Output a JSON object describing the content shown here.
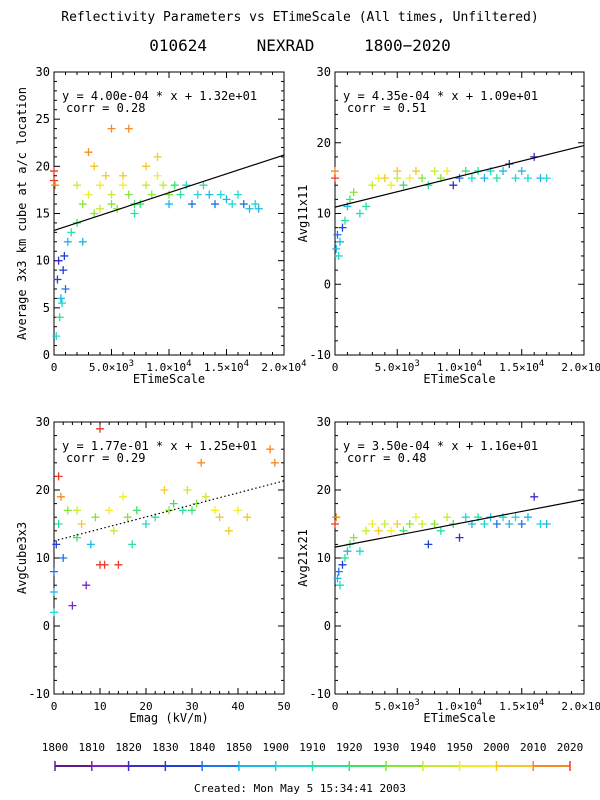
{
  "header": {
    "title": "Reflectivity Parameters vs ETimeScale (All times, Unfiltered)",
    "date": "010624",
    "source": "NEXRAD",
    "time_range": "1800−2020"
  },
  "colorbar": {
    "labels": [
      "1800",
      "1810",
      "1820",
      "1830",
      "1840",
      "1850",
      "1900",
      "1910",
      "1920",
      "1930",
      "1940",
      "1950",
      "2000",
      "2010",
      "2020"
    ],
    "colors": [
      "#5a1d88",
      "#7a24c4",
      "#3a2cc8",
      "#1f3fd8",
      "#1e74e8",
      "#1db8e6",
      "#21d8d0",
      "#2ae0a0",
      "#3ee06a",
      "#86e636",
      "#c8ec2c",
      "#f0ee2a",
      "#f5c82a",
      "#f58a28",
      "#ee3a22"
    ]
  },
  "footer": {
    "created": "Created: Mon May  5 15:34:41 2003"
  },
  "chart_data": [
    {
      "type": "scatter",
      "id": "p1",
      "xlabel": "ETimeScale",
      "ylabel": "Average 3x3 km cube at a/c location",
      "xlim": [
        0,
        20000
      ],
      "ylim": [
        0,
        30
      ],
      "xticks": [
        0,
        5000,
        10000,
        15000,
        20000
      ],
      "yticks": [
        0,
        5,
        10,
        15,
        20,
        25,
        30
      ],
      "annotation_eq": "y = 4.00e-04 * x  + 1.32e+01",
      "annotation_corr": "corr = 0.28",
      "fit": {
        "slope": 0.0004,
        "intercept": 13.2,
        "style": "solid"
      },
      "points": [
        [
          0,
          18.5,
          14
        ],
        [
          0,
          19.5,
          14
        ],
        [
          100,
          18,
          13
        ],
        [
          200,
          2,
          6
        ],
        [
          300,
          8,
          3
        ],
        [
          400,
          10,
          2
        ],
        [
          500,
          4,
          7
        ],
        [
          600,
          6,
          5
        ],
        [
          700,
          5.5,
          6
        ],
        [
          800,
          9,
          3
        ],
        [
          900,
          10.5,
          3
        ],
        [
          1000,
          7,
          4
        ],
        [
          1200,
          12,
          5
        ],
        [
          1500,
          13,
          7
        ],
        [
          2000,
          14,
          8
        ],
        [
          2000,
          18,
          10
        ],
        [
          2500,
          16,
          9
        ],
        [
          2500,
          12,
          5
        ],
        [
          3000,
          17,
          11
        ],
        [
          3000,
          21.5,
          13
        ],
        [
          3500,
          15,
          9
        ],
        [
          3500,
          20,
          12
        ],
        [
          4000,
          15.5,
          10
        ],
        [
          4000,
          18,
          11
        ],
        [
          4500,
          19,
          12
        ],
        [
          5000,
          16,
          9
        ],
        [
          5000,
          17,
          10
        ],
        [
          5000,
          24,
          13
        ],
        [
          5500,
          15.5,
          9
        ],
        [
          6000,
          18,
          11
        ],
        [
          6000,
          19,
          12
        ],
        [
          6500,
          24,
          13
        ],
        [
          6500,
          17,
          9
        ],
        [
          7000,
          16,
          8
        ],
        [
          7000,
          15,
          7
        ],
        [
          7500,
          16,
          8
        ],
        [
          8000,
          18,
          10
        ],
        [
          8000,
          20,
          12
        ],
        [
          8500,
          17,
          9
        ],
        [
          9000,
          19,
          11
        ],
        [
          9000,
          21,
          12
        ],
        [
          9500,
          18,
          10
        ],
        [
          10000,
          17,
          9
        ],
        [
          10000,
          16,
          5
        ],
        [
          10500,
          18,
          8
        ],
        [
          11000,
          17,
          7
        ],
        [
          11500,
          18,
          6
        ],
        [
          12000,
          16,
          4
        ],
        [
          12500,
          17,
          6
        ],
        [
          13000,
          18,
          7
        ],
        [
          13500,
          17,
          5
        ],
        [
          14000,
          16,
          4
        ],
        [
          14500,
          17,
          6
        ],
        [
          15000,
          16.5,
          5
        ],
        [
          15500,
          16,
          6
        ],
        [
          16000,
          17,
          6
        ],
        [
          16500,
          16,
          4
        ],
        [
          17000,
          15.5,
          5
        ],
        [
          17500,
          16,
          6
        ],
        [
          17800,
          15.5,
          5
        ]
      ]
    },
    {
      "type": "scatter",
      "id": "p2",
      "xlabel": "ETimeScale",
      "ylabel": "Avg11x11",
      "xlim": [
        0,
        20000
      ],
      "ylim": [
        -10,
        30
      ],
      "xticks": [
        0,
        5000,
        10000,
        15000,
        20000
      ],
      "yticks": [
        -10,
        0,
        10,
        20,
        30
      ],
      "annotation_eq": "y = 4.35e-04 * x  + 1.09e+01",
      "annotation_corr": "corr = 0.51",
      "fit": {
        "slope": 0.000435,
        "intercept": 10.9,
        "style": "solid"
      },
      "points": [
        [
          0,
          15,
          14
        ],
        [
          0,
          16,
          13
        ],
        [
          100,
          5,
          5
        ],
        [
          200,
          7,
          4
        ],
        [
          300,
          4,
          6
        ],
        [
          400,
          6,
          5
        ],
        [
          600,
          8,
          3
        ],
        [
          800,
          9,
          7
        ],
        [
          1000,
          11,
          5
        ],
        [
          1200,
          12,
          8
        ],
        [
          1500,
          13,
          9
        ],
        [
          2000,
          10,
          6
        ],
        [
          2500,
          11,
          7
        ],
        [
          3000,
          14,
          10
        ],
        [
          3500,
          15,
          11
        ],
        [
          4000,
          15,
          12
        ],
        [
          4500,
          14,
          11
        ],
        [
          5000,
          15,
          10
        ],
        [
          5000,
          16,
          12
        ],
        [
          5500,
          14,
          8
        ],
        [
          6000,
          15,
          11
        ],
        [
          6500,
          16,
          12
        ],
        [
          7000,
          15,
          9
        ],
        [
          7500,
          14,
          7
        ],
        [
          8000,
          16,
          10
        ],
        [
          8500,
          15,
          9
        ],
        [
          9000,
          16,
          11
        ],
        [
          9500,
          14,
          2
        ],
        [
          10000,
          15,
          4
        ],
        [
          10500,
          16,
          8
        ],
        [
          11000,
          15,
          6
        ],
        [
          11500,
          16,
          7
        ],
        [
          12000,
          15,
          5
        ],
        [
          12500,
          16,
          6
        ],
        [
          13000,
          15,
          7
        ],
        [
          13500,
          16,
          5
        ],
        [
          14000,
          17,
          3
        ],
        [
          14500,
          15,
          6
        ],
        [
          15000,
          16,
          5
        ],
        [
          15500,
          15,
          6
        ],
        [
          16000,
          18,
          2
        ],
        [
          16500,
          15,
          5
        ],
        [
          17000,
          15,
          6
        ]
      ]
    },
    {
      "type": "scatter",
      "id": "p3",
      "xlabel": "Emag (kV/m)",
      "ylabel": "AvgCube3x3",
      "xlim": [
        0,
        50
      ],
      "ylim": [
        -10,
        30
      ],
      "xticks": [
        0,
        10,
        20,
        30,
        40,
        50
      ],
      "yticks": [
        -10,
        0,
        10,
        20,
        30
      ],
      "annotation_eq": "y = 1.77e-01 * x  + 1.25e+01",
      "annotation_corr": "corr = 0.29",
      "fit": {
        "slope": 0.177,
        "intercept": 12.5,
        "style": "dotted"
      },
      "points": [
        [
          0,
          2,
          6
        ],
        [
          0,
          5,
          5
        ],
        [
          0,
          8,
          4
        ],
        [
          0.5,
          12,
          3
        ],
        [
          1,
          15,
          7
        ],
        [
          1,
          22,
          14
        ],
        [
          1.5,
          19,
          13
        ],
        [
          2,
          10,
          4
        ],
        [
          3,
          17,
          9
        ],
        [
          4,
          3,
          1
        ],
        [
          5,
          13,
          8
        ],
        [
          5,
          17,
          10
        ],
        [
          6,
          15,
          12
        ],
        [
          7,
          6,
          1
        ],
        [
          8,
          12,
          5
        ],
        [
          9,
          16,
          9
        ],
        [
          10,
          9,
          14
        ],
        [
          10,
          29,
          14
        ],
        [
          11,
          9,
          14
        ],
        [
          12,
          17,
          11
        ],
        [
          13,
          14,
          10
        ],
        [
          14,
          9,
          14
        ],
        [
          15,
          19,
          11
        ],
        [
          16,
          16,
          9
        ],
        [
          17,
          12,
          7
        ],
        [
          18,
          17,
          8
        ],
        [
          20,
          15,
          6
        ],
        [
          22,
          16,
          7
        ],
        [
          24,
          20,
          12
        ],
        [
          25,
          17,
          9
        ],
        [
          26,
          18,
          8
        ],
        [
          28,
          17,
          7
        ],
        [
          29,
          20,
          10
        ],
        [
          30,
          17,
          8
        ],
        [
          31,
          18,
          9
        ],
        [
          32,
          24,
          13
        ],
        [
          33,
          19,
          10
        ],
        [
          35,
          17,
          11
        ],
        [
          36,
          16,
          12
        ],
        [
          38,
          14,
          12
        ],
        [
          40,
          17,
          11
        ],
        [
          42,
          16,
          12
        ],
        [
          47,
          26,
          13
        ],
        [
          48,
          24,
          13
        ]
      ]
    },
    {
      "type": "scatter",
      "id": "p4",
      "xlabel": "ETimeScale",
      "ylabel": "Avg21x21",
      "xlim": [
        0,
        20000
      ],
      "ylim": [
        -10,
        30
      ],
      "xticks": [
        0,
        5000,
        10000,
        15000,
        20000
      ],
      "yticks": [
        -10,
        0,
        10,
        20,
        30
      ],
      "annotation_eq": "y = 3.50e-04 * x  + 1.16e+01",
      "annotation_corr": "corr = 0.48",
      "fit": {
        "slope": 0.00035,
        "intercept": 11.6,
        "style": "solid"
      },
      "points": [
        [
          0,
          15,
          14
        ],
        [
          100,
          16,
          13
        ],
        [
          200,
          7,
          5
        ],
        [
          300,
          8,
          4
        ],
        [
          400,
          6,
          6
        ],
        [
          600,
          9,
          3
        ],
        [
          800,
          10,
          7
        ],
        [
          1000,
          11,
          5
        ],
        [
          1200,
          12,
          8
        ],
        [
          1500,
          13,
          9
        ],
        [
          2000,
          11,
          6
        ],
        [
          2500,
          14,
          10
        ],
        [
          3000,
          15,
          11
        ],
        [
          3500,
          14,
          12
        ],
        [
          4000,
          15,
          10
        ],
        [
          4500,
          14,
          11
        ],
        [
          5000,
          15,
          12
        ],
        [
          5500,
          14,
          8
        ],
        [
          6000,
          15,
          9
        ],
        [
          6500,
          16,
          11
        ],
        [
          7000,
          15,
          10
        ],
        [
          7500,
          12,
          3
        ],
        [
          8000,
          15,
          9
        ],
        [
          8500,
          14,
          7
        ],
        [
          9000,
          16,
          10
        ],
        [
          9500,
          15,
          8
        ],
        [
          10000,
          13,
          2
        ],
        [
          10500,
          16,
          6
        ],
        [
          11000,
          15,
          5
        ],
        [
          11500,
          16,
          7
        ],
        [
          12000,
          15,
          6
        ],
        [
          12500,
          16,
          5
        ],
        [
          13000,
          15,
          4
        ],
        [
          13500,
          16,
          6
        ],
        [
          14000,
          15,
          5
        ],
        [
          14500,
          16,
          6
        ],
        [
          15000,
          15,
          4
        ],
        [
          15500,
          16,
          5
        ],
        [
          16000,
          19,
          2
        ],
        [
          16500,
          15,
          6
        ],
        [
          17000,
          15,
          5
        ]
      ]
    }
  ]
}
